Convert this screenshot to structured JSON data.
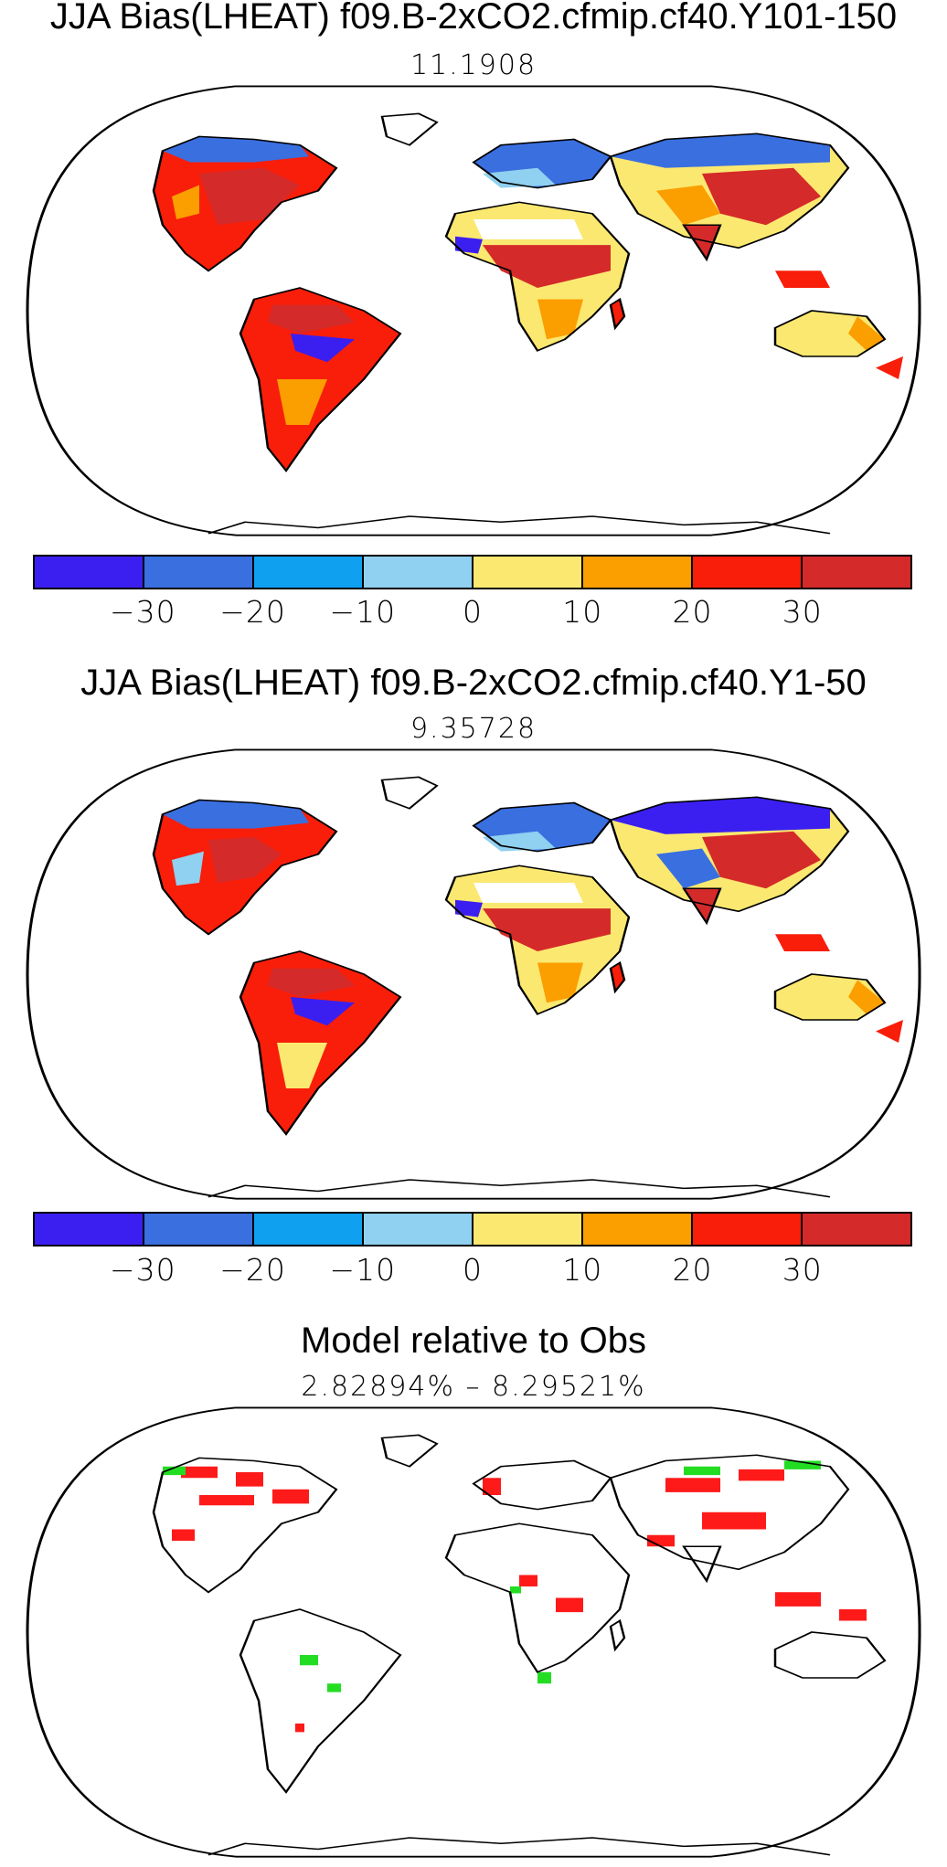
{
  "panels": [
    {
      "title": "JJA Bias(LHEAT) f09.B-2xCO2.cfmip.cf40.Y101-150",
      "subtitle": "11.1908"
    },
    {
      "title": "JJA Bias(LHEAT) f09.B-2xCO2.cfmip.cf40.Y1-50",
      "subtitle": "9.35728"
    },
    {
      "title": "Model relative to Obs",
      "subtitle": "2.82894% – 8.29521%"
    }
  ],
  "colorbar": {
    "colors": [
      "#3b1ff0",
      "#3a6fe0",
      "#10a0f0",
      "#90d0f0",
      "#fbe870",
      "#fb9e00",
      "#f81e0a",
      "#d42a2a"
    ],
    "ticks": [
      "−30",
      "−20",
      "−10",
      "0",
      "10",
      "20",
      "30"
    ]
  },
  "legend_colors": {
    "better": "#22dd22",
    "worse": "#ff1a1a"
  }
}
